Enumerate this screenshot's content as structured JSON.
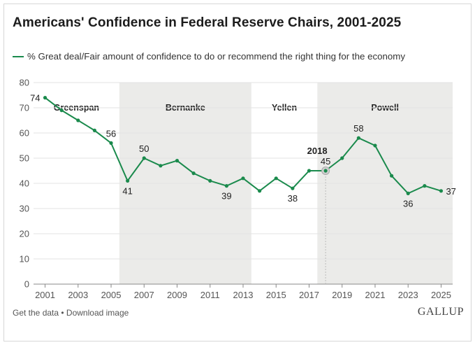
{
  "header": {
    "title": "Americans' Confidence in Federal Reserve Chairs, 2001-2025",
    "legend_label": "% Great deal/Fair amount of confidence to do or recommend the right thing for the economy"
  },
  "footer": {
    "get_data": "Get the data",
    "separator": " • ",
    "download": "Download image",
    "brand": "GALLUP"
  },
  "colors": {
    "line": "#1a8a4c",
    "band": "#ebebe9",
    "grid": "#e3e3e3",
    "axis": "#555555",
    "marker_highlight": "#cfcfcf"
  },
  "chart_data": {
    "type": "line",
    "x": [
      2001,
      2002,
      2003,
      2004,
      2005,
      2006,
      2007,
      2008,
      2009,
      2010,
      2011,
      2012,
      2013,
      2014,
      2015,
      2016,
      2017,
      2018,
      2019,
      2020,
      2021,
      2022,
      2023,
      2024,
      2025
    ],
    "series": [
      {
        "name": "% Great deal/Fair amount of confidence to do or recommend the right thing for the economy",
        "values": [
          74,
          69,
          65,
          61,
          56,
          41,
          50,
          47,
          49,
          44,
          41,
          39,
          42,
          37,
          42,
          38,
          45,
          45,
          50,
          58,
          55,
          43,
          36,
          39,
          37
        ]
      }
    ],
    "xticks": [
      2001,
      2003,
      2005,
      2007,
      2009,
      2011,
      2013,
      2015,
      2017,
      2019,
      2021,
      2023,
      2025
    ],
    "yticks": [
      0,
      10,
      20,
      30,
      40,
      50,
      60,
      70,
      80
    ],
    "ylim": [
      0,
      80
    ],
    "xlim": [
      2000.3,
      2025.7
    ],
    "grid": true,
    "eras": [
      {
        "name": "Greenspan",
        "from": 2000.3,
        "to": 2005.5,
        "shaded": false
      },
      {
        "name": "Bernanke",
        "from": 2005.5,
        "to": 2013.5,
        "shaded": true
      },
      {
        "name": "Yellen",
        "from": 2013.5,
        "to": 2017.5,
        "shaded": false
      },
      {
        "name": "Powell",
        "from": 2017.5,
        "to": 2025.7,
        "shaded": true
      }
    ],
    "data_labels": [
      {
        "x": 2001,
        "value": 74,
        "pos": "left"
      },
      {
        "x": 2005,
        "value": 56,
        "pos": "above"
      },
      {
        "x": 2006,
        "value": 41,
        "pos": "below"
      },
      {
        "x": 2007,
        "value": 50,
        "pos": "above"
      },
      {
        "x": 2012,
        "value": 39,
        "pos": "below"
      },
      {
        "x": 2016,
        "value": 38,
        "pos": "below"
      },
      {
        "x": 2018,
        "value": 45,
        "pos": "above"
      },
      {
        "x": 2020,
        "value": 58,
        "pos": "above"
      },
      {
        "x": 2023,
        "value": 36,
        "pos": "below"
      },
      {
        "x": 2025,
        "value": 37,
        "pos": "right"
      }
    ],
    "highlight": {
      "x": 2018,
      "label": "2018"
    }
  }
}
